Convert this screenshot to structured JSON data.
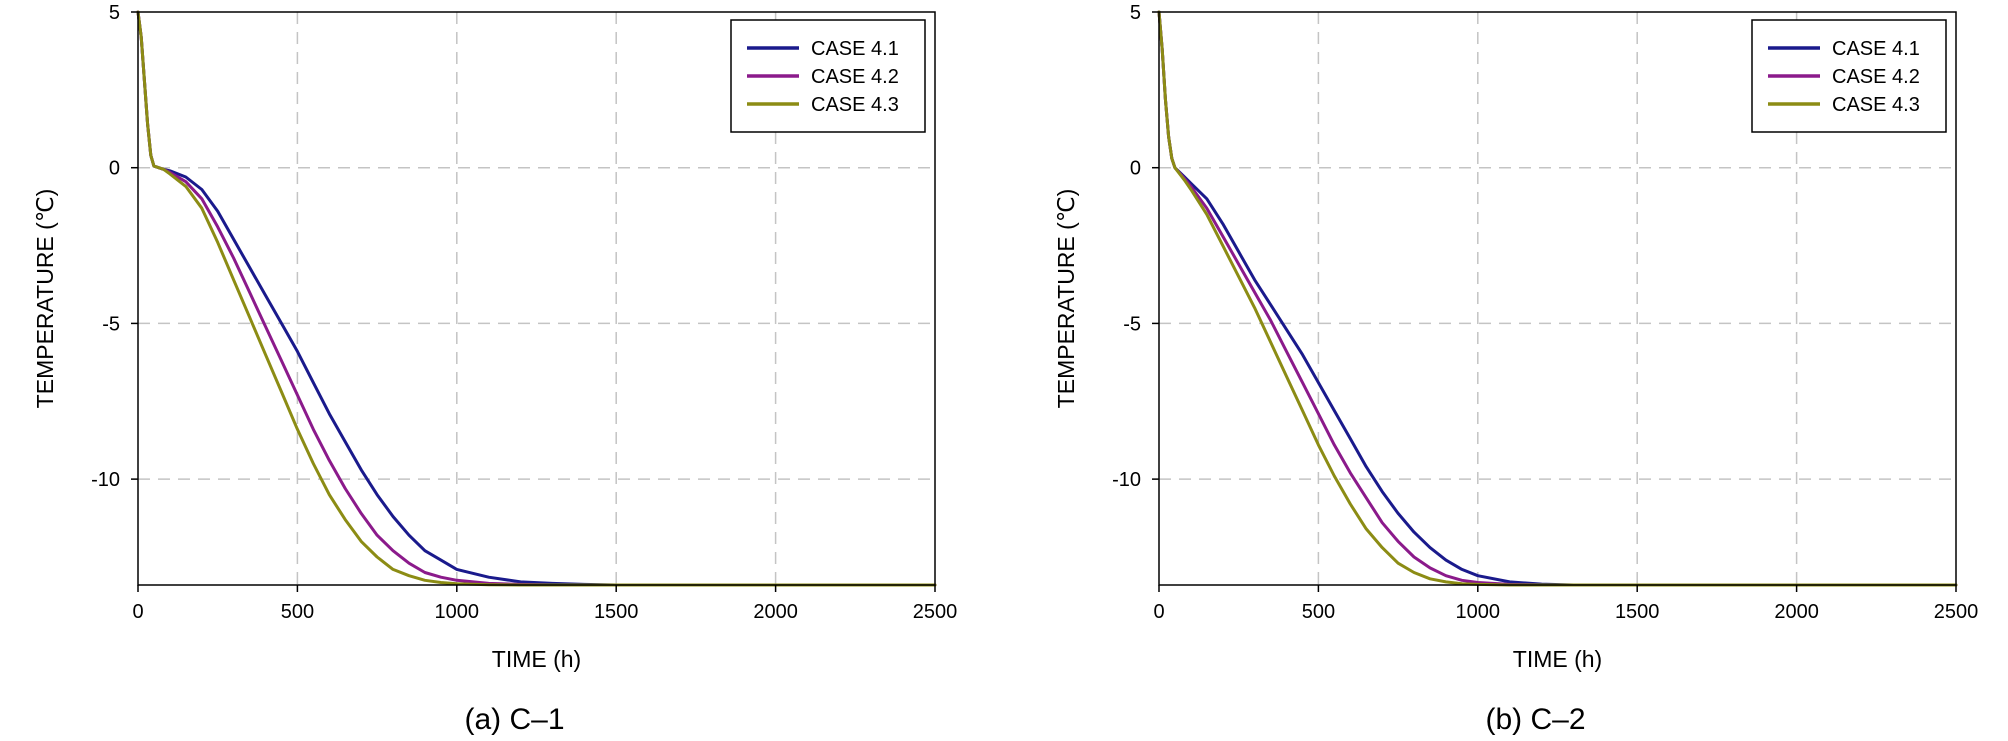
{
  "chart_data": [
    {
      "type": "line",
      "caption": "(a) C–1",
      "xlabel": "TIME (h)",
      "ylabel": "TEMPERATURE (℃)",
      "xlim": [
        0,
        2500
      ],
      "ylim": [
        -13.4,
        5
      ],
      "xticks": [
        0,
        500,
        1000,
        1500,
        2000,
        2500
      ],
      "yticks": [
        5,
        0,
        -5,
        -10
      ],
      "grid": true,
      "legend_position": "top-right",
      "series": [
        {
          "name": "CASE 4.1",
          "color": "#1a1a8c",
          "x": [
            0,
            10,
            20,
            30,
            40,
            50,
            80,
            100,
            150,
            200,
            250,
            300,
            350,
            400,
            450,
            500,
            550,
            600,
            650,
            700,
            750,
            800,
            850,
            900,
            950,
            1000,
            1100,
            1200,
            1300,
            1400,
            1500,
            1620
          ],
          "y": [
            5,
            4.2,
            2.8,
            1.4,
            0.4,
            0.05,
            -0.05,
            -0.1,
            -0.3,
            -0.7,
            -1.4,
            -2.3,
            -3.2,
            -4.1,
            -5.0,
            -5.9,
            -6.9,
            -7.9,
            -8.8,
            -9.7,
            -10.5,
            -11.2,
            -11.8,
            -12.3,
            -12.6,
            -12.9,
            -13.15,
            -13.3,
            -13.35,
            -13.38,
            -13.4,
            -13.4
          ]
        },
        {
          "name": "CASE 4.2",
          "color": "#8b1a8b",
          "x": [
            0,
            10,
            20,
            30,
            40,
            50,
            80,
            100,
            150,
            200,
            250,
            300,
            350,
            400,
            450,
            500,
            550,
            600,
            650,
            700,
            750,
            800,
            850,
            900,
            950,
            1000,
            1100,
            1200,
            1300,
            1400,
            1500,
            2500
          ],
          "y": [
            5,
            4.2,
            2.8,
            1.4,
            0.4,
            0.05,
            -0.05,
            -0.15,
            -0.45,
            -1.0,
            -1.9,
            -2.9,
            -4.0,
            -5.1,
            -6.2,
            -7.3,
            -8.4,
            -9.4,
            -10.3,
            -11.1,
            -11.8,
            -12.3,
            -12.7,
            -13.0,
            -13.15,
            -13.25,
            -13.35,
            -13.38,
            -13.4,
            -13.4,
            -13.4,
            -13.4
          ]
        },
        {
          "name": "CASE 4.3",
          "color": "#8c8c14",
          "x": [
            0,
            10,
            20,
            30,
            40,
            50,
            80,
            100,
            150,
            200,
            250,
            300,
            350,
            400,
            450,
            500,
            550,
            600,
            650,
            700,
            750,
            800,
            850,
            900,
            950,
            1000,
            1100,
            1200,
            1300,
            1400,
            1500,
            2500
          ],
          "y": [
            5,
            4.2,
            2.8,
            1.4,
            0.4,
            0.05,
            -0.05,
            -0.2,
            -0.6,
            -1.3,
            -2.4,
            -3.6,
            -4.8,
            -6.0,
            -7.2,
            -8.4,
            -9.5,
            -10.5,
            -11.3,
            -12.0,
            -12.5,
            -12.9,
            -13.1,
            -13.25,
            -13.32,
            -13.36,
            -13.39,
            -13.4,
            -13.4,
            -13.4,
            -13.4,
            -13.4
          ]
        }
      ]
    },
    {
      "type": "line",
      "caption": "(b) C–2",
      "xlabel": "TIME (h)",
      "ylabel": "TEMPERATURE (℃)",
      "xlim": [
        0,
        2500
      ],
      "ylim": [
        -13.4,
        5
      ],
      "xticks": [
        0,
        500,
        1000,
        1500,
        2000,
        2500
      ],
      "yticks": [
        5,
        0,
        -5,
        -10
      ],
      "grid": true,
      "legend_position": "top-right",
      "series": [
        {
          "name": "CASE 4.1",
          "color": "#1a1a8c",
          "x": [
            0,
            10,
            20,
            30,
            40,
            50,
            80,
            100,
            150,
            200,
            250,
            300,
            350,
            400,
            450,
            500,
            550,
            600,
            650,
            700,
            750,
            800,
            850,
            900,
            950,
            1000,
            1100,
            1200,
            1300,
            1400,
            1500,
            1650
          ],
          "y": [
            5,
            3.8,
            2.2,
            1.0,
            0.3,
            0.0,
            -0.3,
            -0.5,
            -1.0,
            -1.8,
            -2.7,
            -3.6,
            -4.4,
            -5.2,
            -6.0,
            -6.9,
            -7.8,
            -8.7,
            -9.6,
            -10.4,
            -11.1,
            -11.7,
            -12.2,
            -12.6,
            -12.9,
            -13.1,
            -13.3,
            -13.37,
            -13.4,
            -13.4,
            -13.4,
            -13.4
          ]
        },
        {
          "name": "CASE 4.2",
          "color": "#8b1a8b",
          "x": [
            0,
            10,
            20,
            30,
            40,
            50,
            80,
            100,
            150,
            200,
            250,
            300,
            350,
            400,
            450,
            500,
            550,
            600,
            650,
            700,
            750,
            800,
            850,
            900,
            950,
            1000,
            1100,
            1200,
            1300,
            1400,
            1500,
            2500
          ],
          "y": [
            5,
            3.8,
            2.2,
            1.0,
            0.3,
            0.0,
            -0.35,
            -0.6,
            -1.3,
            -2.2,
            -3.1,
            -4.0,
            -4.9,
            -5.9,
            -6.9,
            -7.9,
            -8.9,
            -9.8,
            -10.6,
            -11.4,
            -12.0,
            -12.5,
            -12.85,
            -13.1,
            -13.25,
            -13.32,
            -13.38,
            -13.4,
            -13.4,
            -13.4,
            -13.4,
            -13.4
          ]
        },
        {
          "name": "CASE 4.3",
          "color": "#8c8c14",
          "x": [
            0,
            10,
            20,
            30,
            40,
            50,
            80,
            100,
            150,
            200,
            250,
            300,
            350,
            400,
            450,
            500,
            550,
            600,
            650,
            700,
            750,
            800,
            850,
            900,
            950,
            1000,
            1100,
            1200,
            1300,
            1400,
            1500,
            2500
          ],
          "y": [
            5,
            3.8,
            2.2,
            1.0,
            0.3,
            0.0,
            -0.4,
            -0.7,
            -1.5,
            -2.5,
            -3.5,
            -4.5,
            -5.6,
            -6.7,
            -7.8,
            -8.9,
            -9.9,
            -10.8,
            -11.6,
            -12.2,
            -12.7,
            -13.0,
            -13.2,
            -13.3,
            -13.36,
            -13.38,
            -13.4,
            -13.4,
            -13.4,
            -13.4,
            -13.4,
            -13.4
          ]
        }
      ]
    }
  ]
}
